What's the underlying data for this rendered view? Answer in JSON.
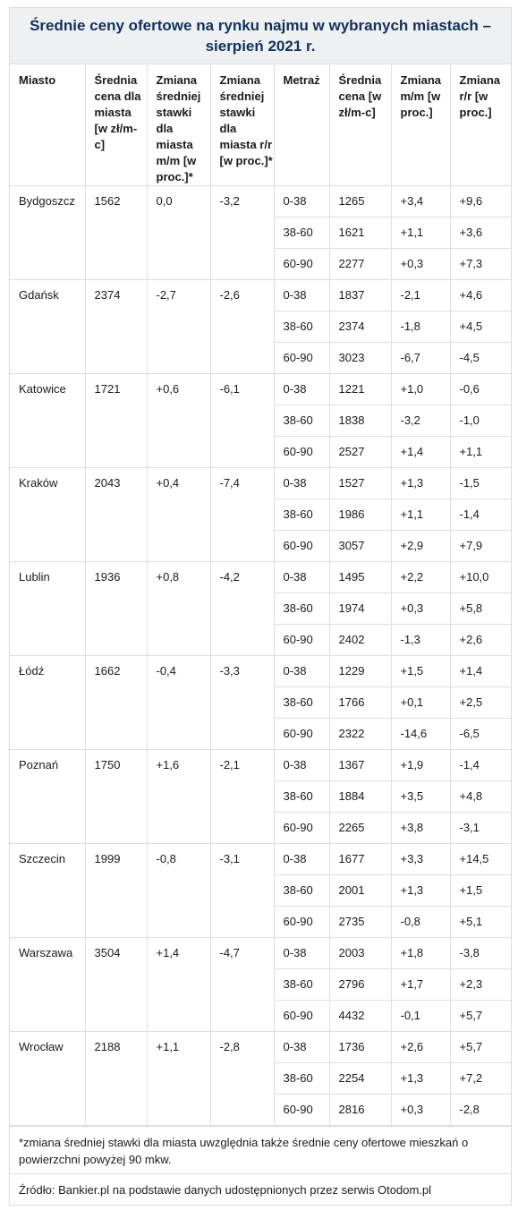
{
  "title": "Średnie ceny ofertowe na rynku najmu w wybranych miastach – sierpień 2021 r.",
  "headers": [
    "Miasto",
    "Średnia cena dla miasta [w zł/m-c]",
    "Zmiana średniej stawki dla miasta m/m [w proc.]*",
    "Zmiana średniej stawki dla miasta r/r [w proc.]*",
    "Metraż",
    "Średnia cena [w zł/m-c]",
    "Zmiana m/m [w proc.]",
    "Zmiana r/r [w proc.]"
  ],
  "cities": [
    {
      "name": "Bydgoszcz",
      "avg": "1562",
      "mm": "0,0",
      "rr": "-3,2",
      "rows": [
        {
          "size": "0-38",
          "price": "1265",
          "mm": "+3,4",
          "rr": "+9,6"
        },
        {
          "size": "38-60",
          "price": "1621",
          "mm": "+1,1",
          "rr": "+3,6"
        },
        {
          "size": "60-90",
          "price": "2277",
          "mm": "+0,3",
          "rr": "+7,3"
        }
      ]
    },
    {
      "name": "Gdańsk",
      "avg": "2374",
      "mm": "-2,7",
      "rr": "-2,6",
      "rows": [
        {
          "size": "0-38",
          "price": "1837",
          "mm": "-2,1",
          "rr": "+4,6"
        },
        {
          "size": "38-60",
          "price": "2374",
          "mm": "-1,8",
          "rr": "+4,5"
        },
        {
          "size": "60-90",
          "price": "3023",
          "mm": "-6,7",
          "rr": "-4,5"
        }
      ]
    },
    {
      "name": "Katowice",
      "avg": "1721",
      "mm": "+0,6",
      "rr": "-6,1",
      "rows": [
        {
          "size": "0-38",
          "price": "1221",
          "mm": "+1,0",
          "rr": "-0,6"
        },
        {
          "size": "38-60",
          "price": "1838",
          "mm": "-3,2",
          "rr": "-1,0"
        },
        {
          "size": "60-90",
          "price": "2527",
          "mm": "+1,4",
          "rr": "+1,1"
        }
      ]
    },
    {
      "name": "Kraków",
      "avg": "2043",
      "mm": "+0,4",
      "rr": "-7,4",
      "rows": [
        {
          "size": "0-38",
          "price": "1527",
          "mm": "+1,3",
          "rr": "-1,5"
        },
        {
          "size": "38-60",
          "price": "1986",
          "mm": "+1,1",
          "rr": "-1,4"
        },
        {
          "size": "60-90",
          "price": "3057",
          "mm": "+2,9",
          "rr": "+7,9"
        }
      ]
    },
    {
      "name": "Lublin",
      "avg": "1936",
      "mm": "+0,8",
      "rr": "-4,2",
      "rows": [
        {
          "size": "0-38",
          "price": "1495",
          "mm": "+2,2",
          "rr": "+10,0"
        },
        {
          "size": "38-60",
          "price": "1974",
          "mm": "+0,3",
          "rr": "+5,8"
        },
        {
          "size": "60-90",
          "price": "2402",
          "mm": "-1,3",
          "rr": "+2,6"
        }
      ]
    },
    {
      "name": "Łódź",
      "avg": "1662",
      "mm": "-0,4",
      "rr": "-3,3",
      "rows": [
        {
          "size": "0-38",
          "price": "1229",
          "mm": "+1,5",
          "rr": "+1,4"
        },
        {
          "size": "38-60",
          "price": "1766",
          "mm": "+0,1",
          "rr": "+2,5"
        },
        {
          "size": "60-90",
          "price": "2322",
          "mm": "-14,6",
          "rr": "-6,5"
        }
      ]
    },
    {
      "name": "Poznań",
      "avg": "1750",
      "mm": "+1,6",
      "rr": "-2,1",
      "rows": [
        {
          "size": "0-38",
          "price": "1367",
          "mm": "+1,9",
          "rr": "-1,4"
        },
        {
          "size": "38-60",
          "price": "1884",
          "mm": "+3,5",
          "rr": "+4,8"
        },
        {
          "size": "60-90",
          "price": "2265",
          "mm": "+3,8",
          "rr": "-3,1"
        }
      ]
    },
    {
      "name": "Szczecin",
      "avg": "1999",
      "mm": "-0,8",
      "rr": "-3,1",
      "rows": [
        {
          "size": "0-38",
          "price": "1677",
          "mm": "+3,3",
          "rr": "+14,5"
        },
        {
          "size": "38-60",
          "price": "2001",
          "mm": "+1,3",
          "rr": "+1,5"
        },
        {
          "size": "60-90",
          "price": "2735",
          "mm": "-0,8",
          "rr": "+5,1"
        }
      ]
    },
    {
      "name": "Warszawa",
      "avg": "3504",
      "mm": "+1,4",
      "rr": "-4,7",
      "rows": [
        {
          "size": "0-38",
          "price": "2003",
          "mm": "+1,8",
          "rr": "-3,8"
        },
        {
          "size": "38-60",
          "price": "2796",
          "mm": "+1,7",
          "rr": "+2,3"
        },
        {
          "size": "60-90",
          "price": "4432",
          "mm": "-0,1",
          "rr": "+5,7"
        }
      ]
    },
    {
      "name": "Wrocław",
      "avg": "2188",
      "mm": "+1,1",
      "rr": "-2,8",
      "rows": [
        {
          "size": "0-38",
          "price": "1736",
          "mm": "+2,6",
          "rr": "+5,7"
        },
        {
          "size": "38-60",
          "price": "2254",
          "mm": "+1,3",
          "rr": "+7,2"
        },
        {
          "size": "60-90",
          "price": "2816",
          "mm": "+0,3",
          "rr": "-2,8"
        }
      ]
    }
  ],
  "footnote": "*zmiana średniej stawki dla miasta uwzględnia także średnie ceny ofertowe mieszkań o powierzchni powyżej 90 mkw.",
  "source": "Źródło: Bankier.pl na podstawie danych udostępnionych przez serwis Otodom.pl"
}
